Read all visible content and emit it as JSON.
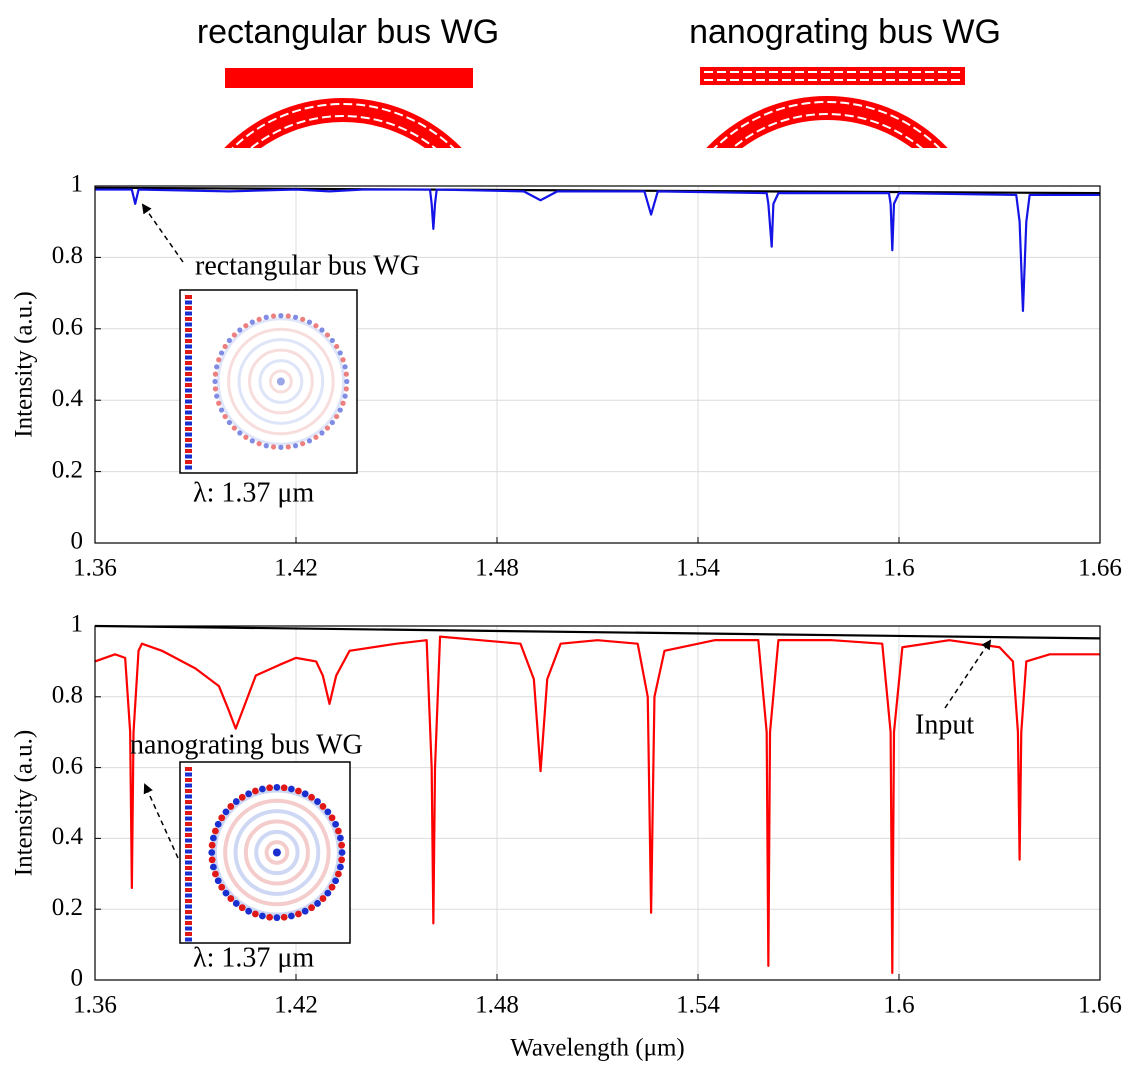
{
  "schematic": {
    "left_label": "rectangular bus  WG",
    "right_label": "nanograting bus  WG"
  },
  "chart_data": [
    {
      "type": "line",
      "ylabel": "Intensity (a.u.)",
      "annotations": [
        "rectangular bus WG",
        "λ: 1.37 μm"
      ],
      "xlim": [
        1.36,
        1.66
      ],
      "xticks": [
        1.36,
        1.42,
        1.48,
        1.54,
        1.6,
        1.66
      ],
      "ylim": [
        0,
        1
      ],
      "yticks": [
        0,
        0.2,
        0.4,
        0.6,
        0.8,
        1
      ],
      "grid": true,
      "series": [
        {
          "color": "#000000",
          "x": [
            1.36,
            1.66
          ],
          "values": [
            0.995,
            0.98
          ]
        },
        {
          "color": "#1414e6",
          "x": [
            1.36,
            1.371,
            1.372,
            1.373,
            1.4,
            1.42,
            1.43,
            1.44,
            1.46,
            1.4605,
            1.461,
            1.4615,
            1.462,
            1.488,
            1.493,
            1.498,
            1.524,
            1.526,
            1.528,
            1.5605,
            1.561,
            1.562,
            1.5625,
            1.564,
            1.597,
            1.5975,
            1.598,
            1.5985,
            1.6,
            1.635,
            1.636,
            1.637,
            1.638,
            1.639,
            1.66
          ],
          "values": [
            0.99,
            0.99,
            0.95,
            0.99,
            0.985,
            0.99,
            0.985,
            0.99,
            0.99,
            0.95,
            0.88,
            0.95,
            0.99,
            0.985,
            0.96,
            0.985,
            0.985,
            0.92,
            0.985,
            0.98,
            0.95,
            0.83,
            0.95,
            0.98,
            0.98,
            0.95,
            0.82,
            0.95,
            0.98,
            0.975,
            0.9,
            0.65,
            0.9,
            0.975,
            0.975
          ]
        }
      ]
    },
    {
      "type": "line",
      "ylabel": "Intensity (a.u.)",
      "xlabel": "Wavelength (μm)",
      "annotations": [
        "Input",
        "nanograting bus WG",
        "λ: 1.37 μm"
      ],
      "xlim": [
        1.36,
        1.66
      ],
      "xticks": [
        1.36,
        1.42,
        1.48,
        1.54,
        1.6,
        1.66
      ],
      "ylim": [
        0,
        1
      ],
      "yticks": [
        0,
        0.2,
        0.4,
        0.6,
        0.8,
        1
      ],
      "grid": true,
      "series": [
        {
          "color": "#000000",
          "x": [
            1.36,
            1.66
          ],
          "values": [
            1.0,
            0.965
          ]
        },
        {
          "color": "#ff0000",
          "x": [
            1.36,
            1.366,
            1.369,
            1.3705,
            1.371,
            1.3715,
            1.373,
            1.374,
            1.38,
            1.39,
            1.397,
            1.4,
            1.402,
            1.404,
            1.408,
            1.415,
            1.42,
            1.426,
            1.428,
            1.43,
            1.432,
            1.436,
            1.45,
            1.459,
            1.4605,
            1.461,
            1.4615,
            1.463,
            1.475,
            1.487,
            1.491,
            1.493,
            1.495,
            1.499,
            1.51,
            1.522,
            1.525,
            1.526,
            1.527,
            1.53,
            1.545,
            1.558,
            1.5605,
            1.561,
            1.5615,
            1.564,
            1.58,
            1.595,
            1.5975,
            1.598,
            1.5985,
            1.601,
            1.615,
            1.63,
            1.634,
            1.6355,
            1.636,
            1.6365,
            1.638,
            1.645,
            1.66
          ],
          "values": [
            0.9,
            0.92,
            0.91,
            0.7,
            0.26,
            0.7,
            0.93,
            0.95,
            0.93,
            0.88,
            0.83,
            0.76,
            0.71,
            0.76,
            0.86,
            0.89,
            0.91,
            0.9,
            0.86,
            0.78,
            0.86,
            0.93,
            0.95,
            0.96,
            0.6,
            0.16,
            0.6,
            0.97,
            0.96,
            0.95,
            0.85,
            0.59,
            0.85,
            0.95,
            0.96,
            0.95,
            0.8,
            0.19,
            0.8,
            0.93,
            0.96,
            0.96,
            0.7,
            0.04,
            0.7,
            0.96,
            0.96,
            0.95,
            0.7,
            0.02,
            0.7,
            0.94,
            0.96,
            0.94,
            0.9,
            0.7,
            0.34,
            0.7,
            0.9,
            0.92,
            0.92
          ]
        }
      ]
    }
  ]
}
